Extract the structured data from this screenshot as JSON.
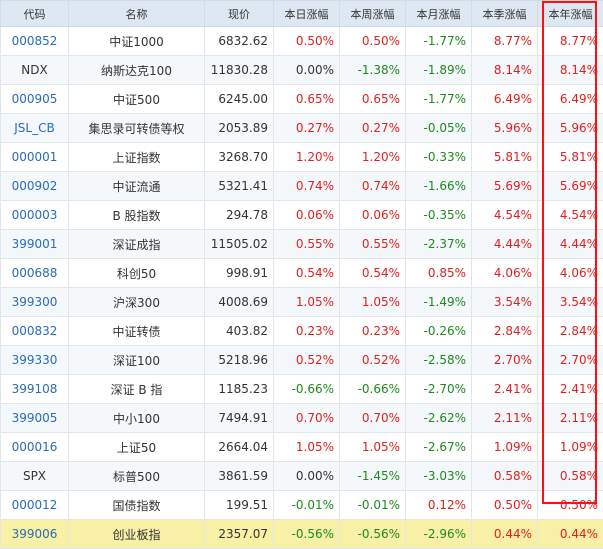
{
  "table": {
    "headers": [
      "代码",
      "名称",
      "现价",
      "本日涨幅",
      "本周涨幅",
      "本月涨幅",
      "本季涨幅",
      "本年涨幅"
    ],
    "rows": [
      {
        "code": "000852",
        "name": "中证1000",
        "price": "6832.62",
        "day": "0.50%",
        "week": "0.50%",
        "month": "-1.77%",
        "quarter": "8.77%",
        "year": "8.77%",
        "code_link": true
      },
      {
        "code": "NDX",
        "name": "纳斯达克100",
        "price": "11830.28",
        "day": "0.00%",
        "week": "-1.38%",
        "month": "-1.89%",
        "quarter": "8.14%",
        "year": "8.14%",
        "code_link": false
      },
      {
        "code": "000905",
        "name": "中证500",
        "price": "6245.00",
        "day": "0.65%",
        "week": "0.65%",
        "month": "-1.77%",
        "quarter": "6.49%",
        "year": "6.49%",
        "code_link": true
      },
      {
        "code": "JSL_CB",
        "name": "集思录可转债等权",
        "price": "2053.89",
        "day": "0.27%",
        "week": "0.27%",
        "month": "-0.05%",
        "quarter": "5.96%",
        "year": "5.96%",
        "code_link": true
      },
      {
        "code": "000001",
        "name": "上证指数",
        "price": "3268.70",
        "day": "1.20%",
        "week": "1.20%",
        "month": "-0.33%",
        "quarter": "5.81%",
        "year": "5.81%",
        "code_link": true
      },
      {
        "code": "000902",
        "name": "中证流通",
        "price": "5321.41",
        "day": "0.74%",
        "week": "0.74%",
        "month": "-1.66%",
        "quarter": "5.69%",
        "year": "5.69%",
        "code_link": true
      },
      {
        "code": "000003",
        "name": "B 股指数",
        "price": "294.78",
        "day": "0.06%",
        "week": "0.06%",
        "month": "-0.35%",
        "quarter": "4.54%",
        "year": "4.54%",
        "code_link": true
      },
      {
        "code": "399001",
        "name": "深证成指",
        "price": "11505.02",
        "day": "0.55%",
        "week": "0.55%",
        "month": "-2.37%",
        "quarter": "4.44%",
        "year": "4.44%",
        "code_link": true
      },
      {
        "code": "000688",
        "name": "科创50",
        "price": "998.91",
        "day": "0.54%",
        "week": "0.54%",
        "month": "0.85%",
        "quarter": "4.06%",
        "year": "4.06%",
        "code_link": true
      },
      {
        "code": "399300",
        "name": "沪深300",
        "price": "4008.69",
        "day": "1.05%",
        "week": "1.05%",
        "month": "-1.49%",
        "quarter": "3.54%",
        "year": "3.54%",
        "code_link": true
      },
      {
        "code": "000832",
        "name": "中证转债",
        "price": "403.82",
        "day": "0.23%",
        "week": "0.23%",
        "month": "-0.26%",
        "quarter": "2.84%",
        "year": "2.84%",
        "code_link": true
      },
      {
        "code": "399330",
        "name": "深证100",
        "price": "5218.96",
        "day": "0.52%",
        "week": "0.52%",
        "month": "-2.58%",
        "quarter": "2.70%",
        "year": "2.70%",
        "code_link": true
      },
      {
        "code": "399108",
        "name": "深证 B 指",
        "price": "1185.23",
        "day": "-0.66%",
        "week": "-0.66%",
        "month": "-2.70%",
        "quarter": "2.41%",
        "year": "2.41%",
        "code_link": true
      },
      {
        "code": "399005",
        "name": "中小100",
        "price": "7494.91",
        "day": "0.70%",
        "week": "0.70%",
        "month": "-2.62%",
        "quarter": "2.11%",
        "year": "2.11%",
        "code_link": true
      },
      {
        "code": "000016",
        "name": "上证50",
        "price": "2664.04",
        "day": "1.05%",
        "week": "1.05%",
        "month": "-2.67%",
        "quarter": "1.09%",
        "year": "1.09%",
        "code_link": true
      },
      {
        "code": "SPX",
        "name": "标普500",
        "price": "3861.59",
        "day": "0.00%",
        "week": "-1.45%",
        "month": "-3.03%",
        "quarter": "0.58%",
        "year": "0.58%",
        "code_link": false
      },
      {
        "code": "000012",
        "name": "国债指数",
        "price": "199.51",
        "day": "-0.01%",
        "week": "-0.01%",
        "month": "0.12%",
        "quarter": "0.50%",
        "year": "0.50%",
        "code_link": true
      },
      {
        "code": "399006",
        "name": "创业板指",
        "price": "2357.07",
        "day": "-0.56%",
        "week": "-0.56%",
        "month": "-2.96%",
        "quarter": "0.44%",
        "year": "0.44%",
        "code_link": true,
        "highlighted": true
      }
    ]
  },
  "colors": {
    "up": "#e02020",
    "down": "#1e8a1e",
    "link": "#2a6bb8",
    "header_bg": "#dde8f3",
    "highlight_row": "#f8f0a6",
    "annotation_box": "#ff1010"
  },
  "annotation": {
    "shape": "red-rectangle",
    "target_column": "本年涨幅"
  }
}
